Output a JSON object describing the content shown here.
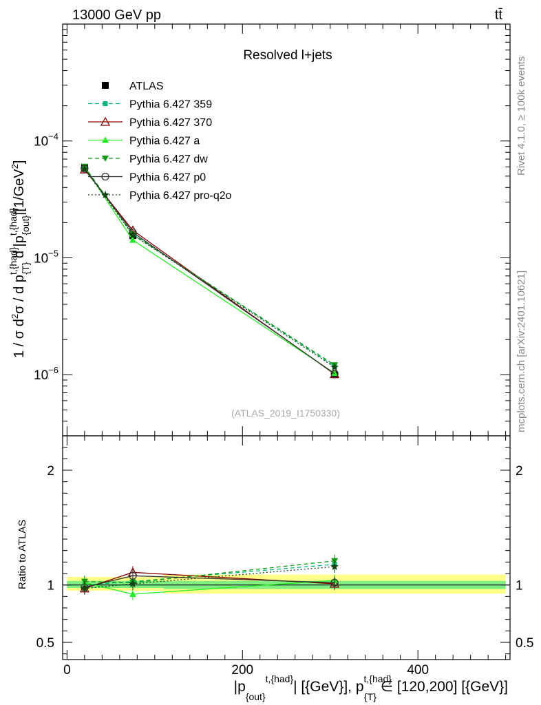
{
  "header": {
    "beam": "13000 GeV pp",
    "process": "tt̄"
  },
  "side_labels": {
    "rivet": "Rivet 4.1.0, ≥ 100k events",
    "site": "mcplots.cern.ch [arXiv:2401.10621]"
  },
  "chart_data": [
    {
      "type": "line",
      "title": "Resolved l+jets",
      "analysis_id": "(ATLAS_2019_I1750330)",
      "yscale": "log",
      "ylabel_main": "1 / σ d²σ / d p_{T}^{t,{had}} d |p_{out}^{t,{had}}| [1/GeV²]",
      "y_tick_labels": [
        "10^{-6}",
        "10^{-5}",
        "10^{-4}"
      ],
      "ylim": [
        3e-07,
        0.001
      ],
      "xlim": [
        -5,
        505
      ],
      "legend_position": "top-left",
      "x": [
        20,
        75,
        305
      ],
      "series": [
        {
          "name": "ATLAS",
          "color": "#000000",
          "style": "data",
          "marker": "filled-square",
          "values": [
            5.9e-05,
            1.55e-05,
            1e-06
          ]
        },
        {
          "name": "Pythia 6.427 359",
          "color": "#00b87a",
          "style": "dashed",
          "marker": "small-filled-square",
          "values": [
            5.9e-05,
            1.6e-05,
            1.18e-06
          ]
        },
        {
          "name": "Pythia 6.427 370",
          "color": "#8b0000",
          "style": "solid",
          "marker": "open-triangle",
          "values": [
            5.7e-05,
            1.72e-05,
            1.01e-06
          ]
        },
        {
          "name": "Pythia 6.427 a",
          "color": "#22ee22",
          "style": "solid",
          "marker": "filled-triangle",
          "values": [
            6e-05,
            1.42e-05,
            1.03e-06
          ]
        },
        {
          "name": "Pythia 6.427 dw",
          "color": "#119911",
          "style": "dashed",
          "marker": "filled-triangle-down",
          "values": [
            6.05e-05,
            1.58e-05,
            1.21e-06
          ]
        },
        {
          "name": "Pythia 6.427 p0",
          "color": "#333333",
          "style": "solid",
          "marker": "open-circle",
          "values": [
            5.8e-05,
            1.65e-05,
            1.02e-06
          ]
        },
        {
          "name": "Pythia 6.427 pro-q2o",
          "color": "#114411",
          "style": "dotted",
          "marker": "star",
          "values": [
            5.75e-05,
            1.57e-05,
            1.16e-06
          ]
        }
      ]
    },
    {
      "type": "line",
      "title": "",
      "ylabel": "Ratio to ATLAS",
      "xlabel": "|p_{out}^{t,{had}}| [{GeV}], p_{T}^{t,{had}} ∈ [120,200] [{GeV}]",
      "ylim": [
        0.35,
        2.3
      ],
      "y_ticks": [
        0.5,
        1,
        2
      ],
      "y_tick_labels": [
        "0.5",
        "1",
        "2"
      ],
      "xlim": [
        -5,
        505
      ],
      "x_ticks": [
        0,
        200,
        400
      ],
      "x_tick_labels": [
        "0",
        "200",
        "400"
      ],
      "x": [
        20,
        75,
        305
      ],
      "bands": [
        {
          "name": "stat",
          "color": "#80ee80",
          "bins": [
            [
              0,
              110,
              0.975,
              1.035
            ],
            [
              110,
              500,
              0.965,
              1.035
            ]
          ]
        },
        {
          "name": "total",
          "color": "#ffff88",
          "bins": [
            [
              0,
              110,
              0.95,
              1.07
            ],
            [
              110,
              500,
              0.925,
              1.09
            ]
          ]
        }
      ],
      "series": [
        {
          "name": "Pythia 6.427 359",
          "values": [
            1.0,
            1.03,
            1.18
          ]
        },
        {
          "name": "Pythia 6.427 370",
          "values": [
            0.97,
            1.11,
            1.01
          ]
        },
        {
          "name": "Pythia 6.427 a",
          "values": [
            1.02,
            0.92,
            1.04
          ]
        },
        {
          "name": "Pythia 6.427 dw",
          "values": [
            1.03,
            1.02,
            1.21
          ]
        },
        {
          "name": "Pythia 6.427 p0",
          "values": [
            0.98,
            1.08,
            1.02
          ]
        },
        {
          "name": "Pythia 6.427 pro-q2o",
          "values": [
            0.97,
            1.01,
            1.16
          ]
        }
      ]
    }
  ]
}
